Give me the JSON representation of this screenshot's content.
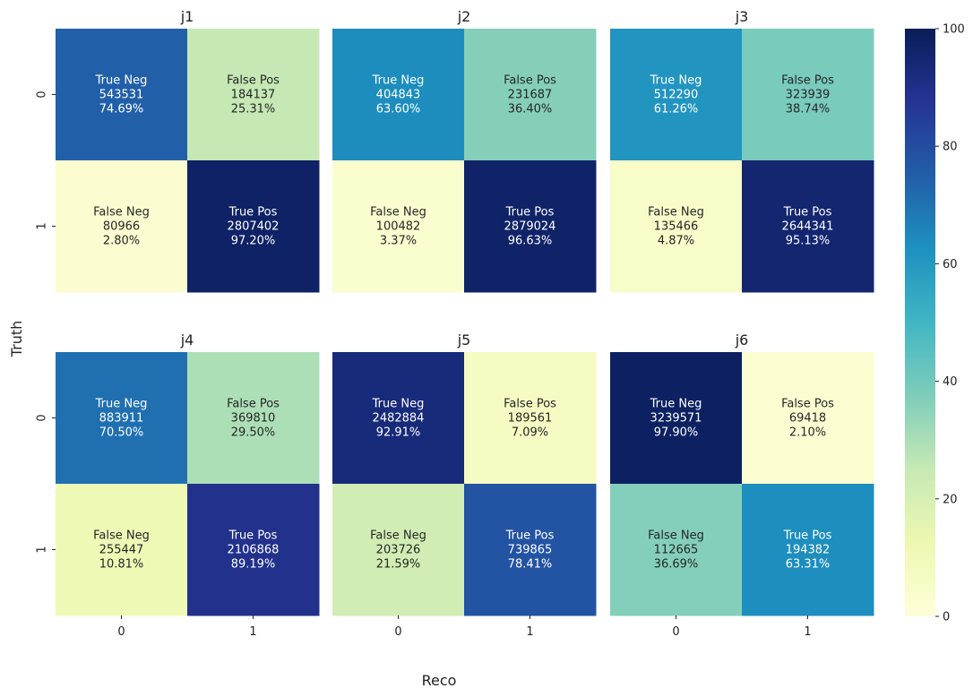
{
  "chart_data": {
    "type": "heatmap",
    "figure": {
      "ylabel": "Truth",
      "xlabel": "Reco",
      "x_tick_labels": [
        "0",
        "1"
      ],
      "y_tick_labels": [
        "0",
        "1"
      ]
    },
    "colorbar": {
      "min": 0,
      "max": 100,
      "ticks": [
        "0",
        "20",
        "40",
        "60",
        "80",
        "100"
      ],
      "colormap": "YlGnBu",
      "stops": [
        "#ffffd9",
        "#edf8b1",
        "#c7e9b4",
        "#7fcdbb",
        "#41b6c4",
        "#1d91c0",
        "#225ea8",
        "#253494",
        "#081d58"
      ]
    },
    "panels": [
      {
        "title": "j1",
        "cells": [
          {
            "label": "True Neg",
            "count": "543531",
            "pct": "74.69%",
            "value": 74.69
          },
          {
            "label": "False Pos",
            "count": "184137",
            "pct": "25.31%",
            "value": 25.31
          },
          {
            "label": "False Neg",
            "count": "80966",
            "pct": "2.80%",
            "value": 2.8
          },
          {
            "label": "True Pos",
            "count": "2807402",
            "pct": "97.20%",
            "value": 97.2
          }
        ]
      },
      {
        "title": "j2",
        "cells": [
          {
            "label": "True Neg",
            "count": "404843",
            "pct": "63.60%",
            "value": 63.6
          },
          {
            "label": "False Pos",
            "count": "231687",
            "pct": "36.40%",
            "value": 36.4
          },
          {
            "label": "False Neg",
            "count": "100482",
            "pct": "3.37%",
            "value": 3.37
          },
          {
            "label": "True Pos",
            "count": "2879024",
            "pct": "96.63%",
            "value": 96.63
          }
        ]
      },
      {
        "title": "j3",
        "cells": [
          {
            "label": "True Neg",
            "count": "512290",
            "pct": "61.26%",
            "value": 61.26
          },
          {
            "label": "False Pos",
            "count": "323939",
            "pct": "38.74%",
            "value": 38.74
          },
          {
            "label": "False Neg",
            "count": "135466",
            "pct": "4.87%",
            "value": 4.87
          },
          {
            "label": "True Pos",
            "count": "2644341",
            "pct": "95.13%",
            "value": 95.13
          }
        ]
      },
      {
        "title": "j4",
        "cells": [
          {
            "label": "True Neg",
            "count": "883911",
            "pct": "70.50%",
            "value": 70.5
          },
          {
            "label": "False Pos",
            "count": "369810",
            "pct": "29.50%",
            "value": 29.5
          },
          {
            "label": "False Neg",
            "count": "255447",
            "pct": "10.81%",
            "value": 10.81
          },
          {
            "label": "True Pos",
            "count": "2106868",
            "pct": "89.19%",
            "value": 89.19
          }
        ]
      },
      {
        "title": "j5",
        "cells": [
          {
            "label": "True Neg",
            "count": "2482884",
            "pct": "92.91%",
            "value": 92.91
          },
          {
            "label": "False Pos",
            "count": "189561",
            "pct": "7.09%",
            "value": 7.09
          },
          {
            "label": "False Neg",
            "count": "203726",
            "pct": "21.59%",
            "value": 21.59
          },
          {
            "label": "True Pos",
            "count": "739865",
            "pct": "78.41%",
            "value": 78.41
          }
        ]
      },
      {
        "title": "j6",
        "cells": [
          {
            "label": "True Neg",
            "count": "3239571",
            "pct": "97.90%",
            "value": 97.9
          },
          {
            "label": "False Pos",
            "count": "69418",
            "pct": "2.10%",
            "value": 2.1
          },
          {
            "label": "False Neg",
            "count": "112665",
            "pct": "36.69%",
            "value": 36.69
          },
          {
            "label": "True Pos",
            "count": "194382",
            "pct": "63.31%",
            "value": 63.31
          }
        ]
      }
    ]
  }
}
